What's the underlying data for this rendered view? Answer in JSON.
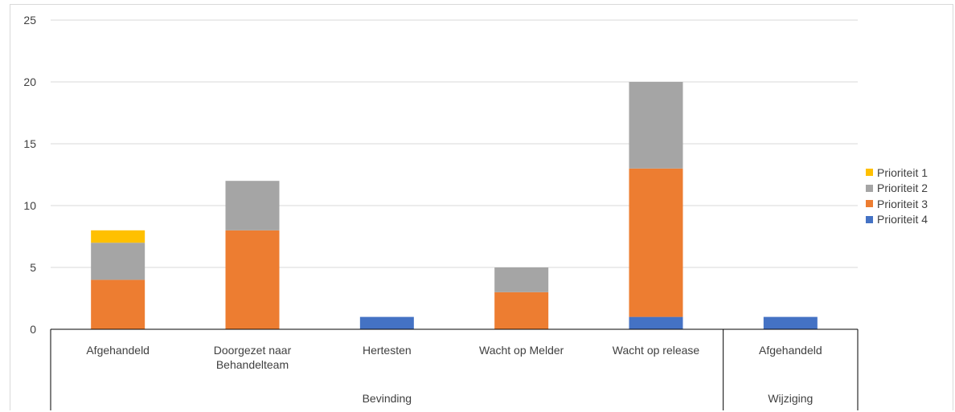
{
  "chart_data": {
    "type": "bar",
    "stacked": true,
    "title": "",
    "xlabel": "",
    "ylabel": "",
    "ylim": [
      0,
      25
    ],
    "yticks": [
      0,
      5,
      10,
      15,
      20,
      25
    ],
    "grid": true,
    "legend_position": "right",
    "groups": [
      {
        "label": "Bevinding",
        "categories": [
          "Afgehandeld",
          "Doorgezet naar Behandelteam",
          "Hertesten",
          "Wacht op Melder",
          "Wacht op release"
        ]
      },
      {
        "label": "Wijziging",
        "categories": [
          "Afgehandeld"
        ]
      }
    ],
    "categories": [
      "Afgehandeld",
      "Doorgezet naar Behandelteam",
      "Hertesten",
      "Wacht op Melder",
      "Wacht op release",
      "Afgehandeld"
    ],
    "category_label_lines": [
      [
        "Afgehandeld"
      ],
      [
        "Doorgezet naar",
        "Behandelteam"
      ],
      [
        "Hertesten"
      ],
      [
        "Wacht op Melder"
      ],
      [
        "Wacht op release"
      ],
      [
        "Afgehandeld"
      ]
    ],
    "series": [
      {
        "name": "Prioriteit 4",
        "color": "#4472c4",
        "values": [
          0,
          0,
          1,
          0,
          1,
          1
        ]
      },
      {
        "name": "Prioriteit 3",
        "color": "#ed7d31",
        "values": [
          4,
          8,
          0,
          3,
          12,
          0
        ]
      },
      {
        "name": "Prioriteit 2",
        "color": "#a5a5a5",
        "values": [
          3,
          4,
          0,
          2,
          7,
          0
        ]
      },
      {
        "name": "Prioriteit 1",
        "color": "#ffc000",
        "values": [
          1,
          0,
          0,
          0,
          0,
          0
        ]
      }
    ],
    "legend_order": [
      "Prioriteit 1",
      "Prioriteit 2",
      "Prioriteit 3",
      "Prioriteit 4"
    ]
  }
}
